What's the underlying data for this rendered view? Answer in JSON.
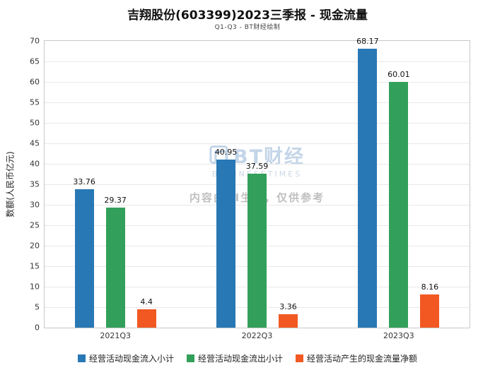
{
  "title": "吉翔股份(603399)2023三季报 - 现金流量",
  "subtitle": "Q1-Q3 - BT财经绘制",
  "watermark": {
    "logo": "BT财经",
    "logo_sub": "BUSINESSTIMES",
    "disclaimer": "内容由AI生成，仅供参考"
  },
  "chart_data": {
    "type": "bar",
    "title": "吉翔股份(603399)2023三季报 - 现金流量",
    "subtitle": "Q1-Q3 - BT财经绘制",
    "categories": [
      "2021Q3",
      "2022Q3",
      "2023Q3"
    ],
    "series": [
      {
        "name": "经营活动现金流入小计",
        "color": "#2878b5",
        "values": [
          33.76,
          40.95,
          68.17
        ]
      },
      {
        "name": "经营活动现金流出小计",
        "color": "#32a05a",
        "values": [
          29.37,
          37.59,
          60.01
        ]
      },
      {
        "name": "经营活动产生的现金流量净额",
        "color": "#f25922",
        "values": [
          4.4,
          3.36,
          8.16
        ]
      }
    ],
    "xlabel": "",
    "ylabel": "数额(人民币亿元)",
    "ylim": [
      0,
      70
    ],
    "ytick_step": 5,
    "grid": true,
    "legend_position": "bottom"
  }
}
